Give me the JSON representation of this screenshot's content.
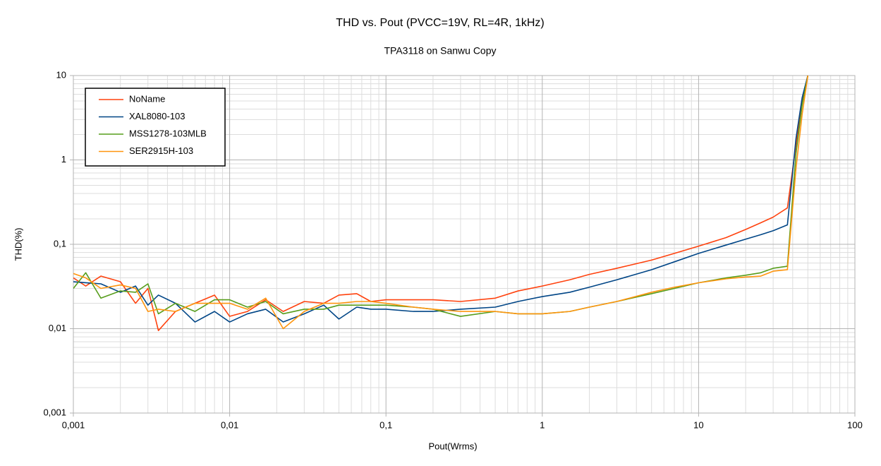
{
  "chart_data": {
    "type": "line",
    "title": "THD vs. Pout (PVCC=19V, RL=4R, 1kHz)",
    "subtitle": "TPA3118 on Sanwu Copy",
    "x_label": "Pout(Wrms)",
    "y_label": "THD(%)",
    "x_log": true,
    "y_log": true,
    "grid": true,
    "legend": "upper-left",
    "xlim": [
      0.001,
      100
    ],
    "ylim": [
      0.001,
      10
    ],
    "xticks": [
      {
        "value": 0.001,
        "label": "0,001"
      },
      {
        "value": 0.01,
        "label": "0,01"
      },
      {
        "value": 0.1,
        "label": "0,1"
      },
      1,
      10,
      100
    ],
    "yticks": [
      {
        "value": 0.001,
        "label": "0,001"
      },
      {
        "value": 0.01,
        "label": "0,01"
      },
      {
        "value": 0.1,
        "label": "0,1"
      },
      1,
      10
    ],
    "x": [
      0.001,
      0.0012,
      0.0015,
      0.002,
      0.0025,
      0.003,
      0.0035,
      0.0045,
      0.006,
      0.008,
      0.01,
      0.013,
      0.017,
      0.022,
      0.03,
      0.04,
      0.05,
      0.065,
      0.08,
      0.1,
      0.15,
      0.2,
      0.3,
      0.5,
      0.7,
      1,
      1.5,
      2,
      3,
      5,
      7,
      10,
      15,
      20,
      25,
      30,
      37,
      42,
      46,
      50
    ],
    "series": [
      {
        "name": "NoName",
        "color": "#ff420e",
        "values": [
          0.04,
          0.032,
          0.042,
          0.036,
          0.02,
          0.03,
          0.0095,
          0.016,
          0.02,
          0.025,
          0.014,
          0.016,
          0.022,
          0.016,
          0.021,
          0.02,
          0.025,
          0.026,
          0.021,
          0.022,
          0.022,
          0.022,
          0.021,
          0.023,
          0.028,
          0.032,
          0.038,
          0.044,
          0.052,
          0.065,
          0.078,
          0.095,
          0.12,
          0.15,
          0.18,
          0.21,
          0.27,
          1.5,
          5,
          10
        ]
      },
      {
        "name": "XAL8080-103",
        "color": "#004586",
        "values": [
          0.036,
          0.035,
          0.034,
          0.027,
          0.032,
          0.019,
          0.025,
          0.02,
          0.012,
          0.016,
          0.012,
          0.015,
          0.017,
          0.012,
          0.015,
          0.019,
          0.013,
          0.018,
          0.017,
          0.017,
          0.016,
          0.016,
          0.017,
          0.018,
          0.021,
          0.024,
          0.027,
          0.031,
          0.038,
          0.05,
          0.062,
          0.078,
          0.098,
          0.115,
          0.13,
          0.145,
          0.17,
          1.8,
          5.5,
          10
        ]
      },
      {
        "name": "MSS1278-103MLB",
        "color": "#579d1c",
        "values": [
          0.03,
          0.046,
          0.023,
          0.028,
          0.027,
          0.034,
          0.015,
          0.02,
          0.016,
          0.022,
          0.022,
          0.018,
          0.021,
          0.015,
          0.017,
          0.017,
          0.019,
          0.019,
          0.019,
          0.019,
          0.018,
          0.017,
          0.014,
          0.016,
          0.015,
          0.015,
          0.016,
          0.018,
          0.021,
          0.026,
          0.03,
          0.035,
          0.04,
          0.043,
          0.046,
          0.052,
          0.055,
          1.2,
          4.5,
          10
        ]
      },
      {
        "name": "SER2915H-103",
        "color": "#ff950e",
        "values": [
          0.045,
          0.04,
          0.03,
          0.033,
          0.03,
          0.016,
          0.017,
          0.016,
          0.02,
          0.02,
          0.02,
          0.017,
          0.023,
          0.01,
          0.016,
          0.02,
          0.02,
          0.021,
          0.021,
          0.02,
          0.018,
          0.017,
          0.016,
          0.016,
          0.015,
          0.015,
          0.016,
          0.018,
          0.021,
          0.027,
          0.031,
          0.035,
          0.039,
          0.041,
          0.042,
          0.048,
          0.05,
          0.8,
          3.5,
          10
        ]
      }
    ]
  }
}
